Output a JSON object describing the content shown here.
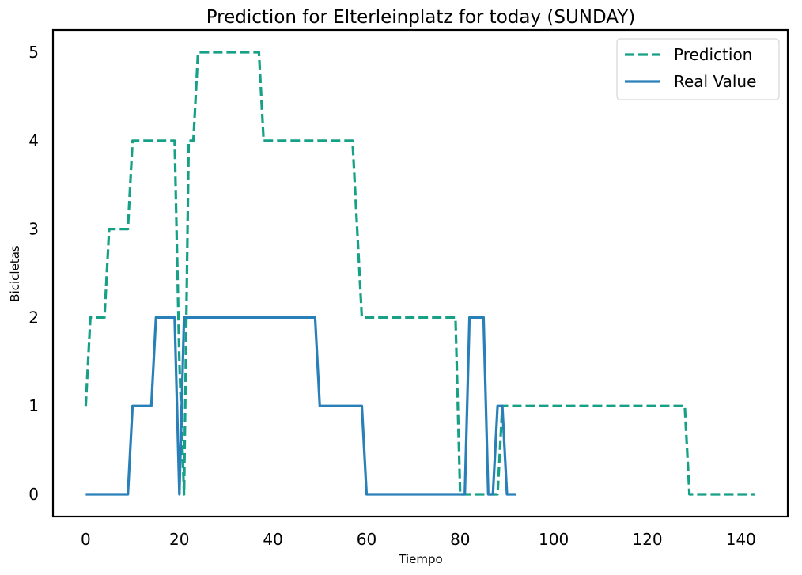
{
  "chart_data": {
    "type": "line",
    "title": "Prediction for Elterleinplatz for today (SUNDAY)",
    "xlabel": "Tiempo",
    "ylabel": "Bicicletas",
    "xlim": [
      -7,
      150
    ],
    "ylim": [
      -0.25,
      5.25
    ],
    "xticks": [
      0,
      20,
      40,
      60,
      80,
      100,
      120,
      140
    ],
    "yticks": [
      0,
      1,
      2,
      3,
      4,
      5
    ],
    "grid": false,
    "legend_position": "top-right",
    "series": [
      {
        "name": "Prediction",
        "color": "#16a085",
        "style": "dashed",
        "x": [
          0,
          1,
          4,
          5,
          9,
          10,
          19,
          20,
          21,
          22,
          23,
          24,
          37,
          38,
          57,
          59,
          79,
          80,
          88,
          89,
          128,
          129,
          143
        ],
        "y": [
          1,
          2,
          2,
          3,
          3,
          4,
          4,
          1.5,
          0,
          4,
          4,
          5,
          5,
          4,
          4,
          2,
          2,
          0,
          0,
          1,
          1,
          0,
          0
        ]
      },
      {
        "name": "Real Value",
        "color": "#2980b9",
        "style": "solid",
        "x": [
          0,
          9,
          10,
          14,
          15,
          19,
          20,
          21,
          49,
          50,
          59,
          60,
          81,
          82,
          85,
          86,
          87,
          88,
          89,
          90,
          92
        ],
        "y": [
          0,
          0,
          1,
          1,
          2,
          2,
          0,
          2,
          2,
          1,
          1,
          0,
          0,
          2,
          2,
          0,
          0,
          1,
          1,
          0,
          0
        ]
      }
    ]
  }
}
